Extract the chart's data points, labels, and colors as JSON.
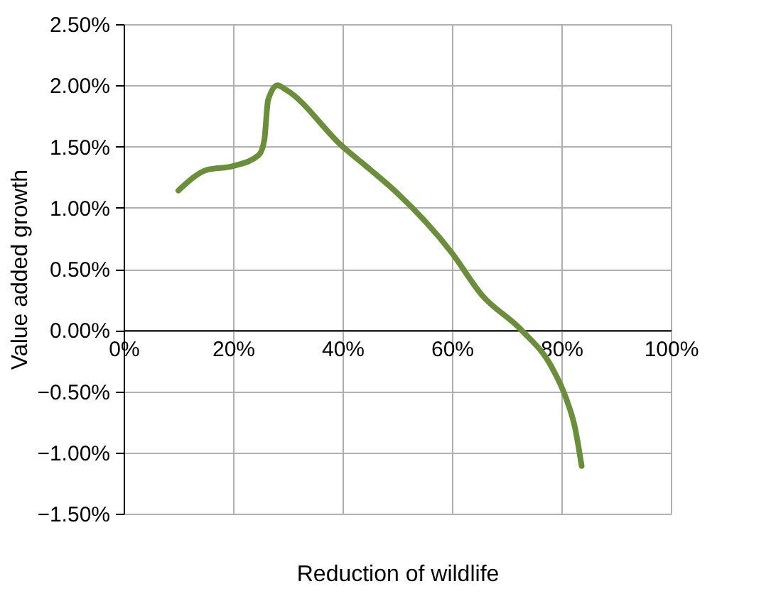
{
  "chart_data": {
    "type": "line",
    "xlabel": "Reduction of wildlife",
    "ylabel": "Value added growth",
    "x": [
      10,
      15.3,
      20,
      24.7,
      25.7,
      26.4,
      28.1,
      29.8,
      40,
      45.1,
      50,
      60,
      65.4,
      72.7,
      78.2,
      80.8,
      82.5,
      83.7
    ],
    "series": [
      {
        "color": "#6b8e3a",
        "values": [
          1.14,
          1.31,
          1.34,
          1.43,
          1.55,
          1.88,
          2.0,
          1.96,
          1.5,
          1.31,
          1.12,
          0.63,
          0.29,
          0,
          -0.3,
          -0.55,
          -0.8,
          -1.11
        ]
      }
    ],
    "xlim": [
      0,
      100
    ],
    "xticks": [
      {
        "value": 0,
        "label": "0%"
      },
      {
        "value": 20,
        "label": "20%"
      },
      {
        "value": 40,
        "label": "40%"
      },
      {
        "value": 60,
        "label": "60%"
      },
      {
        "value": 80,
        "label": "80%"
      },
      {
        "value": 100,
        "label": "100%"
      }
    ],
    "ylim": [
      -1.5,
      2.5
    ],
    "yticks": [
      {
        "value": -1.5,
        "label": "−1.50%"
      },
      {
        "value": -1.0,
        "label": "−1.00%"
      },
      {
        "value": -0.5,
        "label": "−0.50%"
      },
      {
        "value": 0,
        "label": "0.00%"
      },
      {
        "value": 0.5,
        "label": "0.50%"
      },
      {
        "value": 1.0,
        "label": "1.00%"
      },
      {
        "value": 1.5,
        "label": "1.50%"
      },
      {
        "value": 2.0,
        "label": "2.00%"
      },
      {
        "value": 2.5,
        "label": "2.50%"
      }
    ],
    "grid": true,
    "marker": "none",
    "line_style": "solid"
  }
}
